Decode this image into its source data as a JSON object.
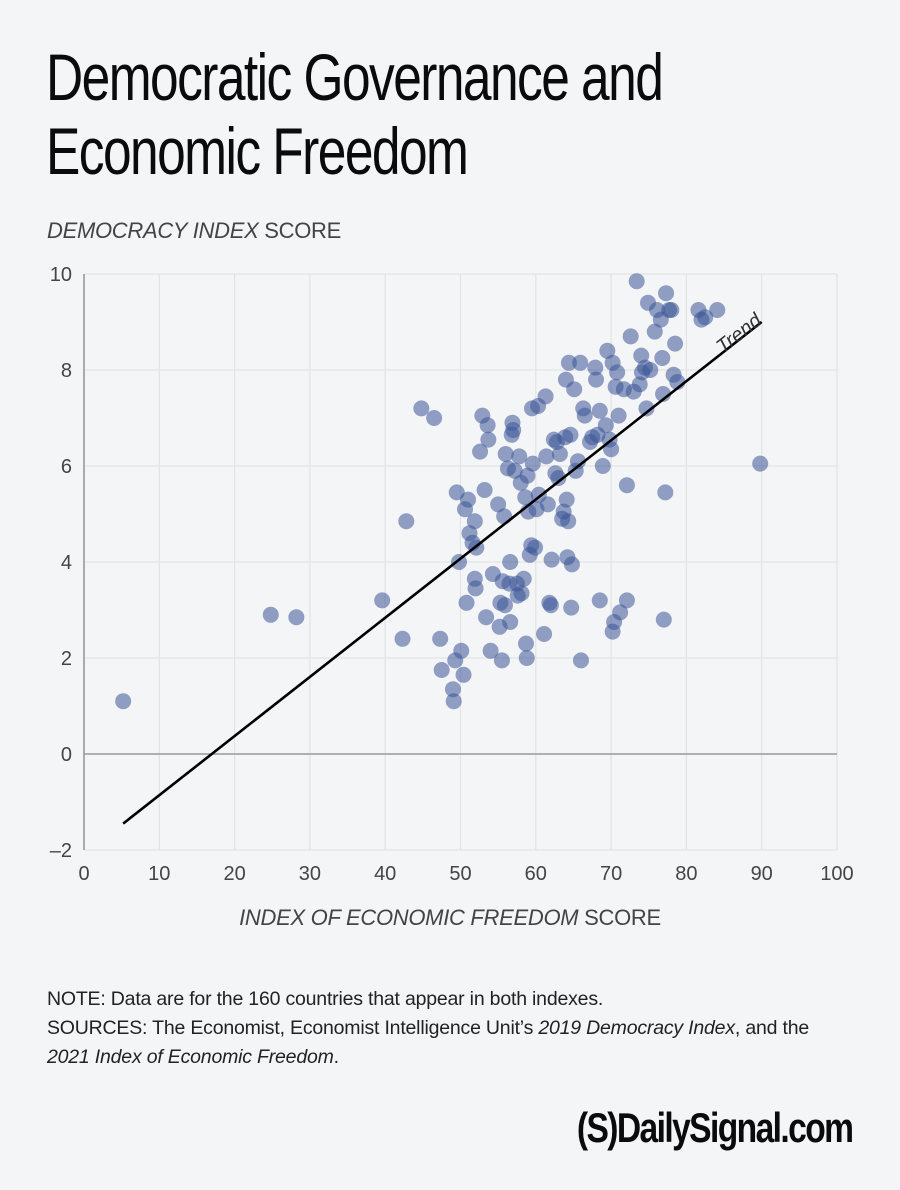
{
  "title_line1": "Democratic Governance and",
  "title_line2": "Economic Freedom",
  "ylabel_italic": "DEMOCRACY INDEX",
  "ylabel_rest": " SCORE",
  "xlabel_italic": "INDEX OF ECONOMIC FREEDOM",
  "xlabel_rest": " SCORE",
  "note": {
    "line1": "NOTE: Data are for the 160 countries that appear in both indexes.",
    "sources_prefix": "SOURCES: The Economist, Economist Intelligence Unit’s ",
    "sources_italic1": "2019 Democracy Index",
    "sources_mid": ", and the ",
    "sources_italic2": "2021 Index of Economic Freedom",
    "sources_end": "."
  },
  "logo": "(S)DailySignal.com",
  "colors": {
    "dot": "#3b5495",
    "trend": "#000000",
    "grid": "#e2e3e6",
    "axis": "#9a9a9a"
  },
  "chart_data": {
    "type": "scatter",
    "title": "Democratic Governance and Economic Freedom",
    "xlabel": "INDEX OF ECONOMIC FREEDOM SCORE",
    "ylabel": "DEMOCRACY INDEX SCORE",
    "xlim": [
      0,
      100
    ],
    "ylim": [
      -2,
      10
    ],
    "xticks": [
      0,
      10,
      20,
      30,
      40,
      50,
      60,
      70,
      80,
      90,
      100
    ],
    "yticks": [
      -2,
      0,
      2,
      4,
      6,
      8,
      10
    ],
    "grid": true,
    "trend": {
      "label": "Trend",
      "x": [
        5.2,
        90
      ],
      "y": [
        -1.45,
        9.0
      ]
    },
    "points": [
      [
        5.2,
        1.1
      ],
      [
        24.8,
        2.9
      ],
      [
        28.2,
        2.85
      ],
      [
        39.6,
        3.2
      ],
      [
        42.3,
        2.4
      ],
      [
        42.8,
        4.85
      ],
      [
        44.8,
        7.2
      ],
      [
        46.5,
        7.0
      ],
      [
        47.3,
        2.4
      ],
      [
        47.5,
        1.75
      ],
      [
        49.0,
        1.35
      ],
      [
        49.1,
        1.1
      ],
      [
        49.3,
        1.95
      ],
      [
        49.5,
        5.45
      ],
      [
        49.8,
        4.0
      ],
      [
        50.1,
        2.15
      ],
      [
        50.4,
        1.65
      ],
      [
        50.6,
        5.1
      ],
      [
        50.8,
        3.15
      ],
      [
        51.0,
        5.3
      ],
      [
        51.2,
        4.6
      ],
      [
        51.6,
        4.4
      ],
      [
        51.9,
        4.85
      ],
      [
        51.9,
        3.65
      ],
      [
        52.0,
        3.45
      ],
      [
        52.1,
        4.3
      ],
      [
        52.6,
        6.3
      ],
      [
        52.9,
        7.05
      ],
      [
        53.2,
        5.5
      ],
      [
        53.4,
        2.85
      ],
      [
        53.6,
        6.85
      ],
      [
        53.7,
        6.55
      ],
      [
        54.0,
        2.15
      ],
      [
        54.3,
        3.75
      ],
      [
        55.0,
        5.2
      ],
      [
        55.2,
        2.65
      ],
      [
        55.3,
        3.15
      ],
      [
        55.5,
        1.95
      ],
      [
        55.6,
        3.6
      ],
      [
        55.8,
        4.95
      ],
      [
        55.9,
        3.1
      ],
      [
        56.0,
        6.25
      ],
      [
        56.3,
        5.95
      ],
      [
        56.5,
        3.55
      ],
      [
        56.6,
        2.75
      ],
      [
        56.6,
        4.0
      ],
      [
        56.8,
        6.65
      ],
      [
        56.9,
        6.9
      ],
      [
        57.0,
        6.75
      ],
      [
        57.2,
        5.9
      ],
      [
        57.5,
        3.55
      ],
      [
        57.6,
        3.3
      ],
      [
        57.8,
        6.2
      ],
      [
        58.0,
        5.65
      ],
      [
        58.1,
        3.35
      ],
      [
        58.4,
        3.65
      ],
      [
        58.6,
        5.35
      ],
      [
        58.7,
        2.3
      ],
      [
        58.8,
        2.0
      ],
      [
        58.9,
        5.8
      ],
      [
        59.0,
        5.05
      ],
      [
        59.2,
        4.15
      ],
      [
        59.4,
        4.35
      ],
      [
        59.5,
        7.2
      ],
      [
        59.6,
        6.05
      ],
      [
        59.9,
        4.3
      ],
      [
        60.1,
        5.1
      ],
      [
        60.3,
        7.25
      ],
      [
        60.4,
        5.4
      ],
      [
        61.1,
        2.5
      ],
      [
        61.3,
        7.45
      ],
      [
        61.4,
        6.2
      ],
      [
        61.6,
        5.2
      ],
      [
        61.8,
        3.15
      ],
      [
        62.0,
        3.1
      ],
      [
        62.1,
        4.05
      ],
      [
        62.4,
        6.55
      ],
      [
        62.6,
        5.85
      ],
      [
        62.8,
        6.5
      ],
      [
        63.0,
        5.75
      ],
      [
        63.2,
        6.25
      ],
      [
        63.5,
        4.9
      ],
      [
        63.7,
        5.05
      ],
      [
        63.9,
        6.6
      ],
      [
        64.0,
        7.8
      ],
      [
        64.1,
        5.3
      ],
      [
        64.2,
        4.1
      ],
      [
        64.3,
        4.85
      ],
      [
        64.4,
        8.15
      ],
      [
        64.6,
        6.65
      ],
      [
        64.7,
        3.05
      ],
      [
        64.8,
        3.95
      ],
      [
        65.1,
        7.6
      ],
      [
        65.3,
        5.9
      ],
      [
        65.6,
        6.1
      ],
      [
        65.9,
        8.15
      ],
      [
        66.0,
        1.95
      ],
      [
        66.3,
        7.2
      ],
      [
        66.5,
        7.05
      ],
      [
        67.2,
        6.5
      ],
      [
        67.5,
        6.6
      ],
      [
        67.9,
        8.05
      ],
      [
        68.0,
        7.8
      ],
      [
        68.2,
        6.65
      ],
      [
        68.5,
        3.2
      ],
      [
        68.5,
        7.15
      ],
      [
        68.9,
        6.0
      ],
      [
        69.3,
        6.85
      ],
      [
        69.5,
        8.4
      ],
      [
        69.8,
        6.55
      ],
      [
        70.0,
        6.35
      ],
      [
        70.2,
        8.15
      ],
      [
        70.2,
        2.55
      ],
      [
        70.4,
        2.75
      ],
      [
        70.6,
        7.65
      ],
      [
        70.8,
        7.95
      ],
      [
        71.0,
        7.05
      ],
      [
        71.2,
        2.95
      ],
      [
        71.7,
        7.6
      ],
      [
        72.1,
        3.2
      ],
      [
        72.1,
        5.6
      ],
      [
        72.6,
        8.7
      ],
      [
        73.0,
        7.55
      ],
      [
        73.4,
        9.85
      ],
      [
        73.8,
        7.7
      ],
      [
        74.0,
        8.3
      ],
      [
        74.1,
        7.95
      ],
      [
        74.5,
        8.05
      ],
      [
        74.7,
        7.2
      ],
      [
        74.9,
        9.4
      ],
      [
        75.2,
        8.0
      ],
      [
        75.8,
        8.8
      ],
      [
        76.1,
        9.25
      ],
      [
        76.6,
        9.05
      ],
      [
        76.8,
        8.25
      ],
      [
        76.9,
        7.5
      ],
      [
        77.0,
        2.8
      ],
      [
        77.2,
        5.45
      ],
      [
        77.3,
        9.6
      ],
      [
        77.7,
        9.25
      ],
      [
        78.0,
        9.25
      ],
      [
        78.3,
        7.9
      ],
      [
        78.5,
        8.55
      ],
      [
        78.8,
        7.75
      ],
      [
        81.6,
        9.25
      ],
      [
        82.0,
        9.05
      ],
      [
        82.5,
        9.1
      ],
      [
        84.1,
        9.25
      ],
      [
        89.8,
        6.05
      ]
    ]
  }
}
